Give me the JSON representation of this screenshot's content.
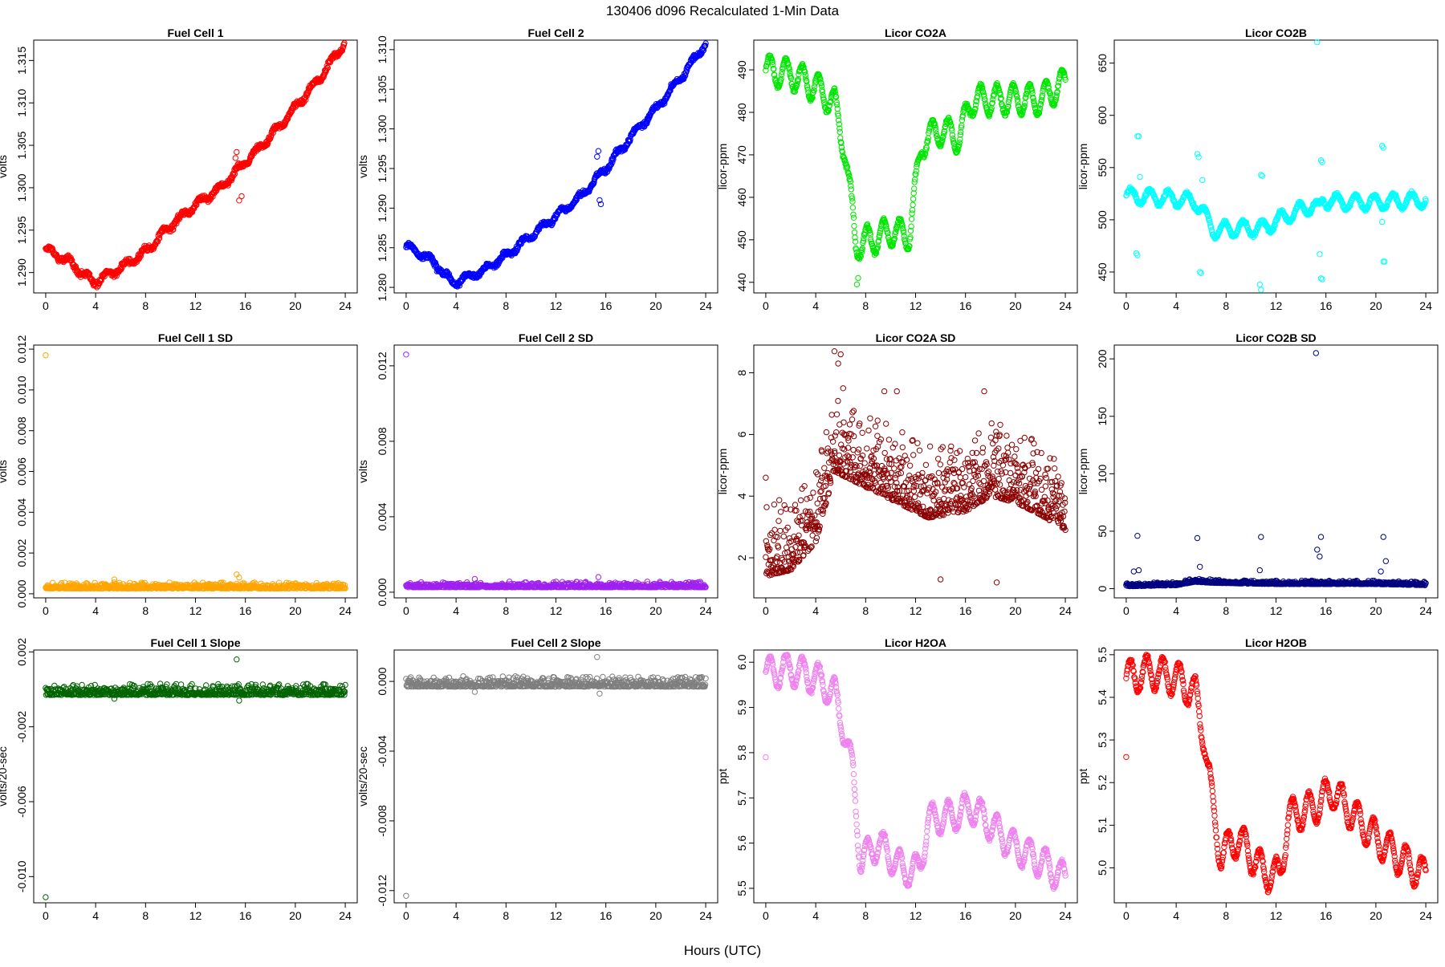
{
  "title": "130406   d096   Recalculated 1-Min Data",
  "xlabel": "Hours (UTC)",
  "chart_data": [
    {
      "id": "fc1",
      "type": "scatter",
      "title": "Fuel Cell 1",
      "ylabel": "volts",
      "color": "#ff0000",
      "xlim": [
        -0.96,
        24.96
      ],
      "ylim": [
        1.2876,
        1.3174
      ],
      "xticks": [
        0,
        4,
        8,
        12,
        16,
        20,
        24
      ],
      "yticks": [
        1.29,
        1.295,
        1.3,
        1.305,
        1.31,
        1.315
      ],
      "ytick_labels": [
        "1.290",
        "1.295",
        "1.300",
        "1.305",
        "1.310",
        "1.315"
      ],
      "curve": [
        [
          0,
          1.2928
        ],
        [
          2,
          1.2912
        ],
        [
          3.8,
          1.2888
        ],
        [
          6,
          1.2905
        ],
        [
          8,
          1.2925
        ],
        [
          10,
          1.2955
        ],
        [
          12,
          1.298
        ],
        [
          14,
          1.3
        ],
        [
          16,
          1.303
        ],
        [
          18,
          1.306
        ],
        [
          20,
          1.3095
        ],
        [
          22,
          1.313
        ],
        [
          24,
          1.3172
        ]
      ],
      "wave": {
        "amp": 0.0004,
        "period": 1.5
      },
      "jitter": 0.0004,
      "n": 720,
      "outliers": [
        [
          15.3,
          1.3042
        ],
        [
          15.5,
          1.2985
        ],
        [
          15.7,
          1.299
        ],
        [
          15.2,
          1.3035
        ]
      ]
    },
    {
      "id": "fc2",
      "type": "scatter",
      "title": "Fuel Cell 2",
      "ylabel": "volts",
      "color": "#0000ff",
      "xlim": [
        -0.96,
        24.96
      ],
      "ylim": [
        1.2793,
        1.3112
      ],
      "xticks": [
        0,
        4,
        8,
        12,
        16,
        20,
        24
      ],
      "yticks": [
        1.28,
        1.285,
        1.29,
        1.295,
        1.3,
        1.305,
        1.31
      ],
      "ytick_labels": [
        "1.280",
        "1.285",
        "1.290",
        "1.295",
        "1.300",
        "1.305",
        "1.310"
      ],
      "curve": [
        [
          0,
          1.2853
        ],
        [
          2,
          1.2835
        ],
        [
          3.8,
          1.2805
        ],
        [
          6,
          1.282
        ],
        [
          8,
          1.284
        ],
        [
          10,
          1.2865
        ],
        [
          12,
          1.289
        ],
        [
          14,
          1.2915
        ],
        [
          16,
          1.295
        ],
        [
          18,
          1.299
        ],
        [
          20,
          1.3025
        ],
        [
          22,
          1.3065
        ],
        [
          24,
          1.3108
        ]
      ],
      "wave": {
        "amp": 0.0004,
        "period": 1.5
      },
      "jitter": 0.0004,
      "n": 720,
      "outliers": [
        [
          15.4,
          1.2972
        ],
        [
          15.5,
          1.291
        ],
        [
          15.6,
          1.2905
        ],
        [
          15.3,
          1.2965
        ]
      ]
    },
    {
      "id": "co2a",
      "type": "scatter",
      "title": "Licor CO2A",
      "ylabel": "licor-ppm",
      "color": "#00e600",
      "xlim": [
        -0.96,
        24.96
      ],
      "ylim": [
        437.5,
        497.0
      ],
      "xticks": [
        0,
        4,
        8,
        12,
        16,
        20,
        24
      ],
      "yticks": [
        440,
        450,
        460,
        470,
        480,
        490
      ],
      "ytick_labels": [
        "440",
        "450",
        "460",
        "470",
        "480",
        "490"
      ],
      "curve": [
        [
          0,
          490
        ],
        [
          2,
          489
        ],
        [
          4,
          486
        ],
        [
          5.5,
          482
        ],
        [
          6.3,
          472
        ],
        [
          7.2,
          449
        ],
        [
          8.5,
          450
        ],
        [
          10,
          452
        ],
        [
          11.5,
          451
        ],
        [
          12.5,
          473
        ],
        [
          14,
          476
        ],
        [
          15.5,
          474
        ],
        [
          16.5,
          483
        ],
        [
          18,
          483
        ],
        [
          20,
          483
        ],
        [
          22,
          483
        ],
        [
          24,
          487
        ]
      ],
      "wave": {
        "amp": 3.5,
        "period": 1.3
      },
      "jitter": 0.6,
      "n": 720,
      "outliers": [
        [
          7.3,
          439.5
        ],
        [
          7.4,
          441
        ]
      ]
    },
    {
      "id": "co2b",
      "type": "scatter",
      "title": "Licor CO2B",
      "ylabel": "licor-ppm",
      "color": "#00ffff",
      "xlim": [
        -0.96,
        24.96
      ],
      "ylim": [
        430.0,
        672.0
      ],
      "xticks": [
        0,
        4,
        8,
        12,
        16,
        20,
        24
      ],
      "yticks": [
        450,
        500,
        550,
        600,
        650
      ],
      "ytick_labels": [
        "450",
        "500",
        "550",
        "600",
        "650"
      ],
      "curve": [
        [
          0,
          523
        ],
        [
          3,
          521
        ],
        [
          5.5,
          518
        ],
        [
          6,
          510
        ],
        [
          7,
          490
        ],
        [
          9,
          492
        ],
        [
          11,
          492
        ],
        [
          13,
          505
        ],
        [
          15,
          514
        ],
        [
          15.5,
          510
        ],
        [
          15.8,
          520
        ],
        [
          17,
          517
        ],
        [
          20,
          517
        ],
        [
          24,
          519
        ]
      ],
      "wave": {
        "amp": 7,
        "period": 1.5
      },
      "jitter": 2,
      "n": 720,
      "outliers": [
        [
          0.9,
          580
        ],
        [
          1.0,
          580
        ],
        [
          0.8,
          468
        ],
        [
          0.9,
          466
        ],
        [
          1.1,
          541
        ],
        [
          5.7,
          563
        ],
        [
          5.8,
          560
        ],
        [
          5.9,
          450
        ],
        [
          6.0,
          449
        ],
        [
          6.1,
          538
        ],
        [
          10.8,
          543
        ],
        [
          10.9,
          542
        ],
        [
          10.7,
          438
        ],
        [
          10.8,
          433
        ],
        [
          15.3,
          670
        ],
        [
          15.6,
          557
        ],
        [
          15.7,
          555
        ],
        [
          15.6,
          444
        ],
        [
          15.7,
          443
        ],
        [
          15.5,
          467
        ],
        [
          20.5,
          571
        ],
        [
          20.6,
          569
        ],
        [
          20.6,
          460
        ],
        [
          20.7,
          460
        ],
        [
          20.5,
          498
        ]
      ]
    },
    {
      "id": "fc1sd",
      "type": "scatter",
      "title": "Fuel Cell 1 SD",
      "ylabel": "volts",
      "color": "#ffa500",
      "xlim": [
        -0.96,
        24.96
      ],
      "ylim": [
        -0.0002,
        0.0122
      ],
      "xticks": [
        0,
        4,
        8,
        12,
        16,
        20,
        24
      ],
      "yticks": [
        0.0,
        0.002,
        0.004,
        0.006,
        0.008,
        0.01,
        0.012
      ],
      "ytick_labels": [
        "0.000",
        "0.002",
        "0.004",
        "0.006",
        "0.008",
        "0.010",
        "0.012"
      ],
      "curve": [
        [
          0,
          0.00018
        ],
        [
          24,
          0.00018
        ]
      ],
      "noise": {
        "base": 8e-05,
        "spread": 0.0003
      },
      "n": 720,
      "outliers": [
        [
          0,
          0.0117
        ],
        [
          15.3,
          0.00095
        ],
        [
          15.5,
          0.0008
        ],
        [
          5.5,
          0.0007
        ]
      ]
    },
    {
      "id": "fc2sd",
      "type": "scatter",
      "title": "Fuel Cell 2 SD",
      "ylabel": "volts",
      "color": "#a020f0",
      "xlim": [
        -0.96,
        24.96
      ],
      "ylim": [
        -0.0003,
        0.0131
      ],
      "xticks": [
        0,
        4,
        8,
        12,
        16,
        20,
        24
      ],
      "yticks": [
        0.0,
        0.004,
        0.008,
        0.012
      ],
      "ytick_labels": [
        "0.000",
        "0.004",
        "0.008",
        "0.012"
      ],
      "curve": [
        [
          0,
          0.00018
        ],
        [
          24,
          0.00018
        ]
      ],
      "noise": {
        "base": 8e-05,
        "spread": 0.0003
      },
      "n": 720,
      "outliers": [
        [
          0,
          0.0126
        ],
        [
          15.4,
          0.0008
        ],
        [
          5.5,
          0.0007
        ]
      ]
    },
    {
      "id": "co2asd",
      "type": "scatter",
      "title": "Licor CO2A SD",
      "ylabel": "licor-ppm",
      "color": "#8b0000",
      "xlim": [
        -0.96,
        24.96
      ],
      "ylim": [
        0.7,
        8.9
      ],
      "xticks": [
        0,
        4,
        8,
        12,
        16,
        20,
        24
      ],
      "yticks": [
        2,
        4,
        6,
        8
      ],
      "ytick_labels": [
        "2",
        "4",
        "6",
        "8"
      ],
      "curve": [
        [
          0,
          1.4
        ],
        [
          2,
          1.6
        ],
        [
          4,
          2.5
        ],
        [
          5.5,
          4.8
        ],
        [
          7,
          4.5
        ],
        [
          10,
          3.9
        ],
        [
          13,
          3.3
        ],
        [
          16,
          3.5
        ],
        [
          18,
          4.0
        ],
        [
          20,
          3.8
        ],
        [
          22,
          3.4
        ],
        [
          24,
          2.9
        ]
      ],
      "noise": {
        "base": 0,
        "spread": 2.4
      },
      "n": 1000,
      "outliers": [
        [
          0,
          4.6
        ],
        [
          5.5,
          8.7
        ],
        [
          6,
          8.6
        ],
        [
          5.8,
          8.3
        ],
        [
          9.5,
          7.4
        ],
        [
          10.5,
          7.4
        ],
        [
          17.5,
          7.4
        ],
        [
          14,
          1.3
        ],
        [
          18.5,
          1.2
        ],
        [
          6.2,
          7.5
        ]
      ]
    },
    {
      "id": "co2bsd",
      "type": "scatter",
      "title": "Licor CO2B SD",
      "ylabel": "licor-ppm",
      "color": "#000080",
      "xlim": [
        -0.96,
        24.96
      ],
      "ylim": [
        -8,
        212
      ],
      "xticks": [
        0,
        4,
        8,
        12,
        16,
        20,
        24
      ],
      "yticks": [
        0,
        50,
        100,
        150,
        200
      ],
      "ytick_labels": [
        "0",
        "50",
        "100",
        "150",
        "200"
      ],
      "curve": [
        [
          0,
          2
        ],
        [
          4,
          3
        ],
        [
          5.5,
          6
        ],
        [
          7,
          5
        ],
        [
          12,
          4
        ],
        [
          16,
          4
        ],
        [
          20,
          4
        ],
        [
          24,
          3
        ]
      ],
      "noise": {
        "base": 0,
        "spread": 3
      },
      "n": 720,
      "outliers": [
        [
          15.2,
          205
        ],
        [
          0.9,
          46
        ],
        [
          5.7,
          44
        ],
        [
          10.8,
          45
        ],
        [
          15.6,
          45
        ],
        [
          20.6,
          45
        ],
        [
          15.3,
          34
        ],
        [
          15.5,
          28
        ],
        [
          20.8,
          24
        ],
        [
          0.6,
          15
        ],
        [
          1.0,
          16
        ],
        [
          5.9,
          19
        ],
        [
          10.7,
          16
        ],
        [
          20.4,
          15
        ]
      ]
    },
    {
      "id": "fc1slope",
      "type": "scatter",
      "title": "Fuel Cell 1 Slope",
      "ylabel": "volts/20-sec",
      "color": "#006400",
      "xlim": [
        -0.96,
        24.96
      ],
      "ylim": [
        -0.0114,
        0.0021
      ],
      "xticks": [
        0,
        4,
        8,
        12,
        16,
        20,
        24
      ],
      "yticks": [
        -0.01,
        -0.006,
        -0.002,
        0.002
      ],
      "ytick_labels": [
        "-0.010",
        "-0.006",
        "-0.002",
        "0.002"
      ],
      "curve": [
        [
          0,
          0
        ],
        [
          24,
          0
        ]
      ],
      "noise": {
        "base": -0.0003,
        "spread": 0.0006
      },
      "n": 720,
      "outliers": [
        [
          0,
          -0.0111
        ],
        [
          15.3,
          0.0016
        ],
        [
          15.5,
          -0.0006
        ],
        [
          5.5,
          -0.0005
        ]
      ]
    },
    {
      "id": "fc2slope",
      "type": "scatter",
      "title": "Fuel Cell 2 Slope",
      "ylabel": "volts/20-sec",
      "color": "#7f7f7f",
      "xlim": [
        -0.96,
        24.96
      ],
      "ylim": [
        -0.0127,
        0.0018
      ],
      "xticks": [
        0,
        4,
        8,
        12,
        16,
        20,
        24
      ],
      "yticks": [
        -0.012,
        -0.008,
        -0.004,
        0.0
      ],
      "ytick_labels": [
        "-0.012",
        "-0.008",
        "-0.004",
        "0.000"
      ],
      "curve": [
        [
          0,
          0
        ],
        [
          24,
          0
        ]
      ],
      "noise": {
        "base": -0.0003,
        "spread": 0.0006
      },
      "n": 720,
      "outliers": [
        [
          0,
          -0.0123
        ],
        [
          15.3,
          0.0014
        ],
        [
          15.5,
          -0.0007
        ],
        [
          5.5,
          -0.0006
        ]
      ]
    },
    {
      "id": "h2oa",
      "type": "scatter",
      "title": "Licor H2OA",
      "ylabel": "ppt",
      "color": "#ee82ee",
      "xlim": [
        -0.96,
        24.96
      ],
      "ylim": [
        5.468,
        6.027
      ],
      "xticks": [
        0,
        4,
        8,
        12,
        16,
        20,
        24
      ],
      "yticks": [
        5.5,
        5.6,
        5.7,
        5.8,
        5.9,
        6.0
      ],
      "ytick_labels": [
        "5.5",
        "5.6",
        "5.7",
        "5.8",
        "5.9",
        "6.0"
      ],
      "curve": [
        [
          0,
          5.975
        ],
        [
          2,
          5.985
        ],
        [
          4,
          5.965
        ],
        [
          5.5,
          5.93
        ],
        [
          6.3,
          5.85
        ],
        [
          7,
          5.75
        ],
        [
          7.6,
          5.56
        ],
        [
          9,
          5.6
        ],
        [
          11,
          5.54
        ],
        [
          12.3,
          5.54
        ],
        [
          13,
          5.65
        ],
        [
          15,
          5.66
        ],
        [
          16.5,
          5.68
        ],
        [
          18,
          5.64
        ],
        [
          20,
          5.59
        ],
        [
          22,
          5.56
        ],
        [
          24,
          5.52
        ]
      ],
      "wave": {
        "amp": 0.035,
        "period": 1.3
      },
      "jitter": 0.006,
      "n": 720,
      "outliers": [
        [
          0,
          5.79
        ]
      ]
    },
    {
      "id": "h2ob",
      "type": "scatter",
      "title": "Licor H2OB",
      "ylabel": "ppt",
      "color": "#ff0000",
      "xlim": [
        -0.96,
        24.96
      ],
      "ylim": [
        4.918,
        5.511
      ],
      "xticks": [
        0,
        4,
        8,
        12,
        16,
        20,
        24
      ],
      "yticks": [
        5.0,
        5.1,
        5.2,
        5.3,
        5.4,
        5.5
      ],
      "ytick_labels": [
        "5.0",
        "5.1",
        "5.2",
        "5.3",
        "5.4",
        "5.5"
      ],
      "curve": [
        [
          0,
          5.445
        ],
        [
          2,
          5.46
        ],
        [
          4,
          5.445
        ],
        [
          5.5,
          5.41
        ],
        [
          6.3,
          5.3
        ],
        [
          7,
          5.12
        ],
        [
          7.6,
          5.03
        ],
        [
          9,
          5.07
        ],
        [
          11,
          4.99
        ],
        [
          12.3,
          4.98
        ],
        [
          13,
          5.12
        ],
        [
          15,
          5.14
        ],
        [
          16.5,
          5.18
        ],
        [
          18,
          5.13
        ],
        [
          20,
          5.07
        ],
        [
          22,
          5.02
        ],
        [
          24,
          4.98
        ]
      ],
      "wave": {
        "amp": 0.04,
        "period": 1.3
      },
      "jitter": 0.006,
      "n": 720,
      "outliers": [
        [
          0,
          5.26
        ]
      ]
    }
  ]
}
